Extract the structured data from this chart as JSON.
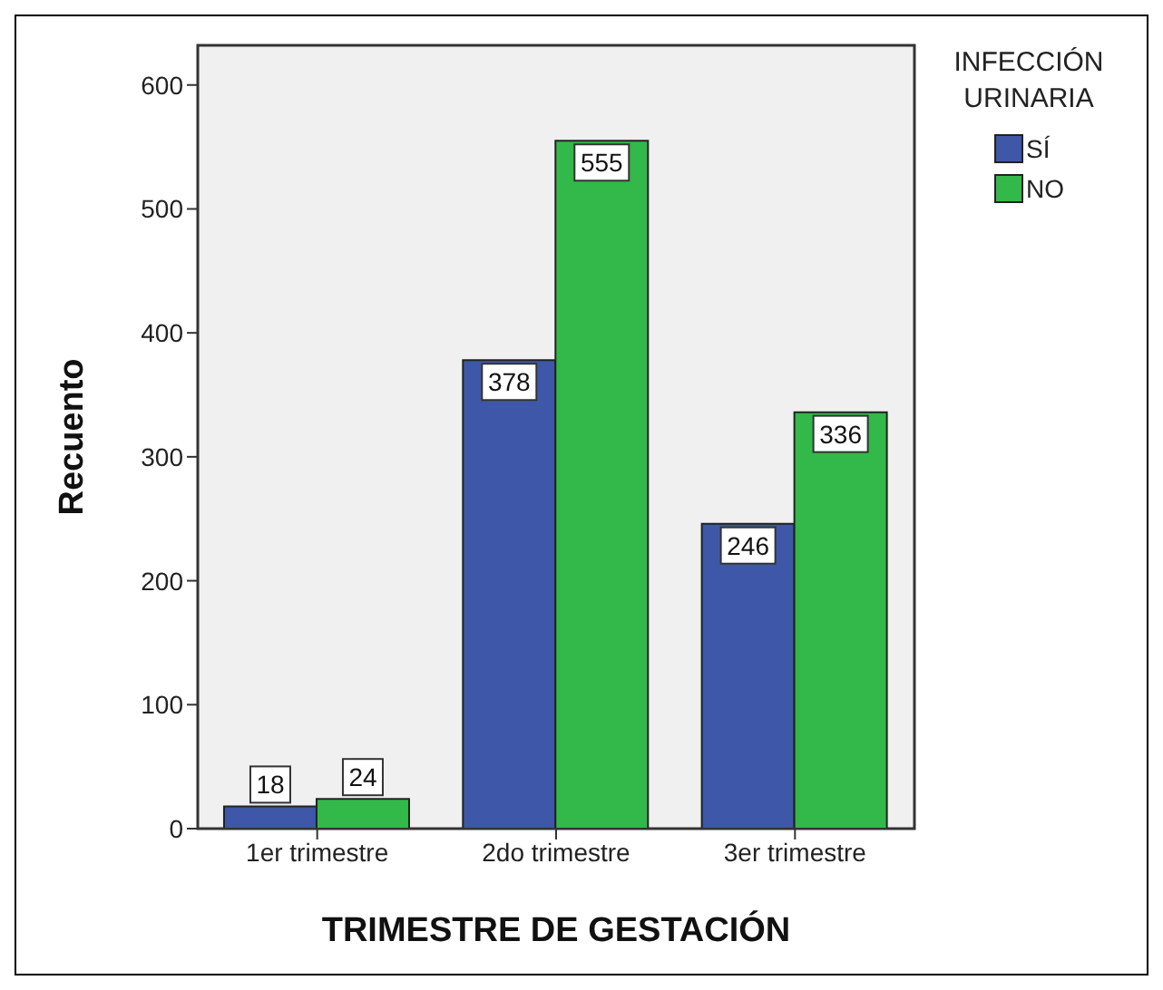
{
  "chart_data": {
    "type": "bar",
    "xlabel": "TRIMESTRE DE GESTACIÓN",
    "ylabel": "Recuento",
    "legend_title": "INFECCIÓN URINARIA",
    "categories": [
      "1er trimestre",
      "2do trimestre",
      "3er trimestre"
    ],
    "series": [
      {
        "name": "SÍ",
        "color": "#3f57a8",
        "values": [
          18,
          378,
          246
        ]
      },
      {
        "name": "NO",
        "color": "#33b84a",
        "values": [
          24,
          555,
          336
        ]
      }
    ],
    "ylim": [
      0,
      632
    ],
    "yticks": [
      0,
      100,
      200,
      300,
      400,
      500,
      600
    ],
    "data_labels": true,
    "legend": "top right"
  }
}
